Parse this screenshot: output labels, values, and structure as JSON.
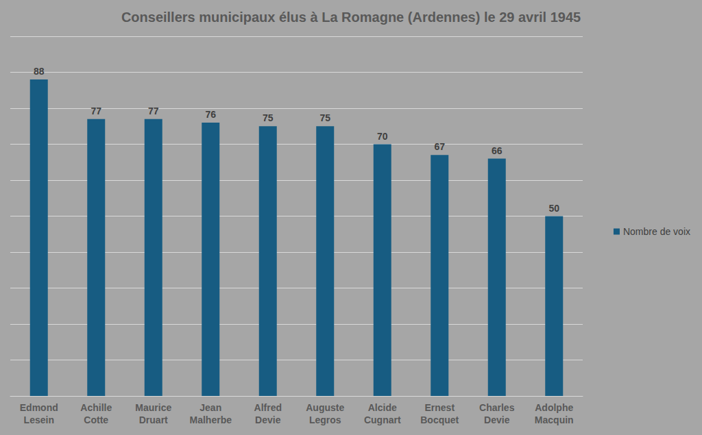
{
  "chart_data": {
    "type": "bar",
    "title": "Conseillers municipaux élus à La Romagne (Ardennes) le 29 avril 1945",
    "categories": [
      "Edmond Lesein",
      "Achille Cotte",
      "Maurice Druart",
      "Jean Malherbe",
      "Alfred Devie",
      "Auguste Legros",
      "Alcide Cugnart",
      "Ernest Bocquet",
      "Charles Devie",
      "Adolphe Macquin"
    ],
    "series": [
      {
        "name": "Nombre de voix",
        "color": "#175c82",
        "values": [
          88,
          77,
          77,
          76,
          75,
          75,
          70,
          67,
          66,
          50
        ]
      }
    ],
    "ylim": [
      0,
      100
    ],
    "yticks": [
      0,
      10,
      20,
      30,
      40,
      50,
      60,
      70,
      80,
      90,
      100
    ],
    "grid": true,
    "legend": "right",
    "data_labels": true,
    "tick_labels": "x"
  }
}
